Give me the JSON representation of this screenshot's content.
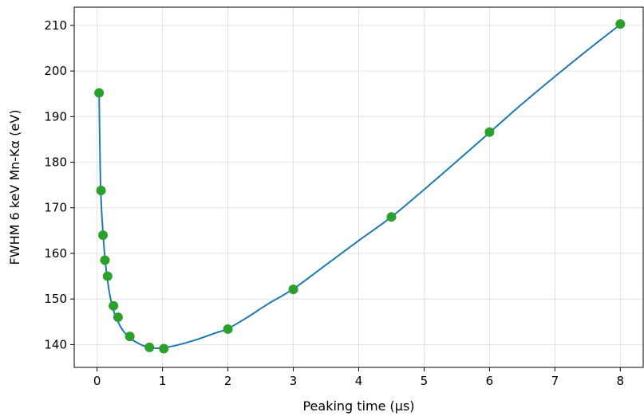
{
  "chart_data": {
    "type": "line",
    "title": "",
    "xlabel": "Peaking time (μs)",
    "ylabel": "FWHM 6 keV Mn-Kα (eV)",
    "xlim": [
      -0.35,
      8.35
    ],
    "ylim": [
      135,
      214
    ],
    "x_ticks": [
      0,
      1,
      2,
      3,
      4,
      5,
      6,
      7,
      8
    ],
    "y_ticks": [
      140,
      150,
      160,
      170,
      180,
      190,
      200,
      210
    ],
    "x_tick_labels": [
      "0",
      "1",
      "2",
      "3",
      "4",
      "5",
      "6",
      "7",
      "8"
    ],
    "y_tick_labels": [
      "140",
      "150",
      "160",
      "170",
      "180",
      "190",
      "200",
      "210"
    ],
    "grid": true,
    "legend": "none",
    "series": [
      {
        "kind": "curve",
        "color": "#1f77b4",
        "x": [
          0.03,
          0.04,
          0.05,
          0.07,
          0.1,
          0.13,
          0.16,
          0.2,
          0.25,
          0.32,
          0.4,
          0.5,
          0.6,
          0.7,
          0.8,
          0.9,
          1.0,
          1.2,
          1.5,
          1.8,
          2.0,
          2.3,
          2.6,
          3.0,
          3.5,
          4.0,
          4.5,
          5.0,
          5.5,
          6.0,
          6.5,
          7.0,
          7.5,
          8.0
        ],
        "y": [
          195.2,
          185.0,
          176.5,
          169.0,
          162.5,
          157.5,
          154.0,
          150.5,
          147.5,
          145.0,
          143.0,
          141.5,
          140.5,
          139.8,
          139.4,
          139.2,
          139.3,
          139.8,
          141.0,
          142.5,
          143.5,
          146.0,
          148.8,
          152.2,
          157.5,
          162.8,
          168.0,
          174.0,
          180.2,
          186.5,
          192.8,
          198.8,
          204.6,
          210.2
        ]
      },
      {
        "kind": "points",
        "color": "#2ca02c",
        "x": [
          0.03,
          0.06,
          0.09,
          0.12,
          0.16,
          0.25,
          0.32,
          0.5,
          0.8,
          1.02,
          2.0,
          3.0,
          4.5,
          6.0,
          8.0
        ],
        "y": [
          195.2,
          173.8,
          164.0,
          158.5,
          155.0,
          148.5,
          146.0,
          141.8,
          139.4,
          139.1,
          143.4,
          152.1,
          168.0,
          186.6,
          210.3
        ]
      }
    ]
  }
}
